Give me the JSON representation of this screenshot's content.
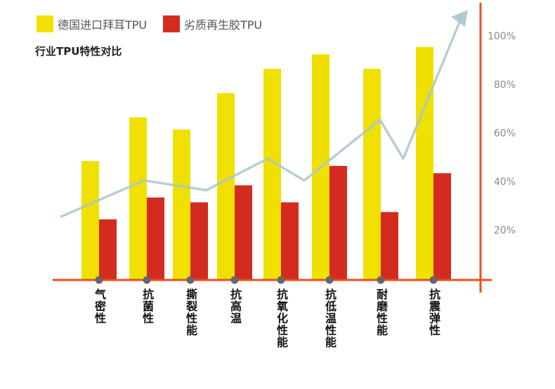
{
  "legend": [
    {
      "label": "德国进口拜耳TPU",
      "color": "#f0e000"
    },
    {
      "label": "劣质再生胶TPU",
      "color": "#d42b20"
    }
  ],
  "subtitle": "行业TPU特性对比",
  "colors": {
    "axis": "#e8501e",
    "trend": "#a9c7cc",
    "marker": "#666666"
  },
  "chart_data": {
    "type": "bar",
    "title": "行业TPU特性对比",
    "categories": [
      "气密性",
      "抗菌性",
      "撕裂性能",
      "抗高温",
      "抗氧化性能",
      "抗低温性能",
      "耐磨性能",
      "抗震弹性"
    ],
    "series": [
      {
        "name": "德国进口拜耳TPU",
        "values": [
          49,
          67,
          62,
          77,
          87,
          93,
          87,
          96
        ]
      },
      {
        "name": "劣质再生胶TPU",
        "values": [
          25,
          34,
          32,
          39,
          32,
          47,
          28,
          44
        ]
      }
    ],
    "trend_line": [
      26,
      41,
      37,
      50,
      41,
      66,
      50,
      109
    ],
    "yticks": [
      "20%",
      "40%",
      "60%",
      "80%",
      "100%"
    ],
    "ytick_values": [
      20,
      40,
      60,
      80,
      100
    ],
    "ylim": [
      0,
      116
    ],
    "xlabel": "",
    "ylabel": "",
    "grid": false
  }
}
